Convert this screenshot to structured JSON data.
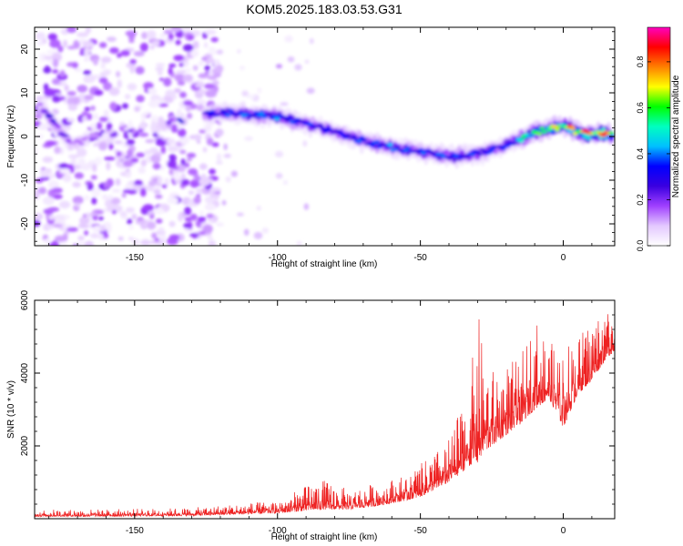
{
  "chart_data": [
    {
      "type": "heatmap",
      "title": "KOM5.2025.183.03.53.G31",
      "xlabel": "Height of straight line (km)",
      "ylabel": "Frequency (Hz)",
      "xlim": [
        -185,
        18
      ],
      "ylim": [
        -25,
        25
      ],
      "xticks": [
        -150,
        -100,
        -50,
        0
      ],
      "yticks": [
        -20,
        -10,
        0,
        10,
        20
      ],
      "grid": false,
      "colorbar": {
        "label": "Normalized spectral amplitude",
        "range": [
          0,
          0.95
        ],
        "ticks": [
          "0.0",
          "0.2",
          "0.4",
          "0.6",
          "0.8"
        ],
        "colormap": [
          "#ffffff",
          "#e3c8ff",
          "#a040ff",
          "#3a00e0",
          "#0000ff",
          "#00c0ff",
          "#00ffc0",
          "#00ff00",
          "#ffff00",
          "#ff8000",
          "#ff0000",
          "#ff00c0"
        ]
      },
      "ridge": {
        "x": [
          -183,
          -178,
          -172,
          -168,
          -125,
          -120,
          -110,
          -100,
          -90,
          -80,
          -70,
          -60,
          -50,
          -40,
          -30,
          -20,
          -10,
          0,
          5,
          10,
          17
        ],
        "y": [
          7,
          3,
          -2,
          -1,
          5,
          5.5,
          5,
          4.5,
          3,
          1,
          -1,
          -2.5,
          -3.5,
          -4.5,
          -4,
          -2,
          1,
          2.5,
          1,
          0.5,
          0.5
        ],
        "peak_amplitude": [
          0.25,
          0.3,
          0.2,
          0.15,
          0.35,
          0.4,
          0.45,
          0.45,
          0.4,
          0.35,
          0.4,
          0.45,
          0.4,
          0.45,
          0.4,
          0.4,
          0.7,
          0.8,
          0.9,
          0.95,
          0.95
        ]
      },
      "noise_region_x": [
        -185,
        -128
      ]
    },
    {
      "type": "line",
      "xlabel": "Height of straight line (km)",
      "ylabel": "SNR (10 * v/v)",
      "xlim": [
        -185,
        18
      ],
      "ylim": [
        0,
        6000
      ],
      "xticks": [
        -150,
        -100,
        -50,
        0
      ],
      "yticks": [
        2000,
        4000,
        6000
      ],
      "grid": false,
      "color": "#ee2222",
      "envelope": {
        "x": [
          -185,
          -160,
          -130,
          -100,
          -85,
          -75,
          -65,
          -55,
          -50,
          -45,
          -40,
          -35,
          -32,
          -30,
          -28,
          -25,
          -20,
          -15,
          -10,
          -5,
          0,
          5,
          10,
          15,
          18
        ],
        "base": [
          60,
          60,
          80,
          150,
          250,
          250,
          350,
          500,
          600,
          800,
          1000,
          1300,
          1500,
          1500,
          1800,
          2000,
          2300,
          2600,
          3000,
          3300,
          2500,
          3400,
          3800,
          4400,
          4600
        ],
        "peak": [
          250,
          260,
          300,
          500,
          1100,
          800,
          1000,
          1200,
          1500,
          1800,
          2200,
          3200,
          4200,
          6000,
          4500,
          4100,
          4300,
          4400,
          5600,
          4800,
          4900,
          5000,
          5500,
          5900,
          5800
        ]
      }
    }
  ]
}
